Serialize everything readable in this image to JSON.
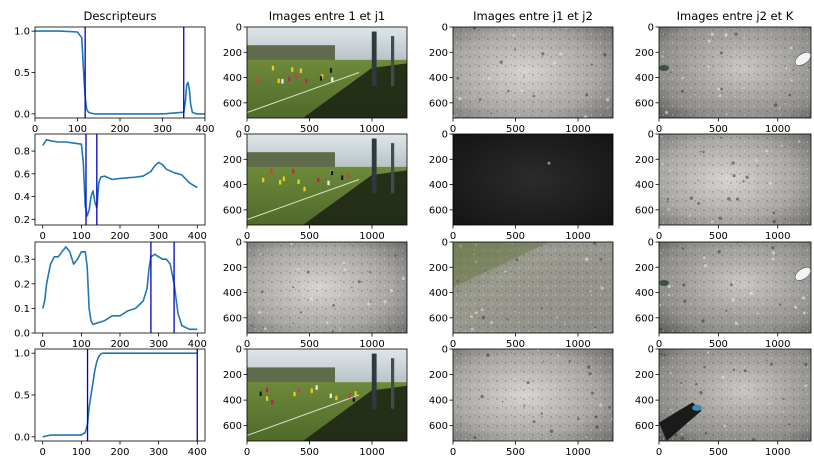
{
  "figure": {
    "columns": [
      {
        "title": "Descripteurs"
      },
      {
        "title": "Images entre 1 et j1"
      },
      {
        "title": "Images entre j1 et j2"
      },
      {
        "title": "Images entre j2 et K"
      }
    ]
  },
  "chart_data": [
    {
      "type": "line",
      "panel": "descriptor-row-1",
      "xlim": [
        0,
        400
      ],
      "ylim": [
        -0.05,
        1.05
      ],
      "xticks": [
        0,
        100,
        200,
        300,
        400
      ],
      "yticks": [
        0.0,
        0.5,
        1.0
      ],
      "ytick_labels": [
        "0.0",
        "0.5",
        "1.0"
      ],
      "vlines": [
        118,
        350
      ],
      "series": [
        {
          "color": "#1f77b4",
          "x": [
            0,
            60,
            100,
            110,
            114,
            118,
            122,
            126,
            130,
            140,
            200,
            300,
            350,
            354,
            357,
            360,
            363,
            366,
            370,
            380,
            400
          ],
          "y": [
            1.0,
            1.0,
            0.99,
            0.92,
            0.55,
            0.2,
            0.05,
            0.02,
            0.01,
            0.0,
            0.0,
            0.0,
            0.02,
            0.15,
            0.35,
            0.38,
            0.3,
            0.12,
            0.02,
            0.0,
            0.0
          ]
        }
      ]
    },
    {
      "type": "line",
      "panel": "descriptor-row-2",
      "xlim": [
        -20,
        420
      ],
      "ylim": [
        0.15,
        0.95
      ],
      "xticks": [
        0,
        100,
        200,
        300,
        400
      ],
      "yticks": [
        0.2,
        0.4,
        0.6,
        0.8
      ],
      "ytick_labels": [
        "0.2",
        "0.4",
        "0.6",
        "0.8"
      ],
      "vlines": [
        112,
        140
      ],
      "series": [
        {
          "color": "#1f77b4",
          "x": [
            0,
            10,
            20,
            40,
            60,
            80,
            100,
            105,
            110,
            115,
            120,
            125,
            130,
            135,
            140,
            145,
            150,
            160,
            180,
            200,
            240,
            260,
            280,
            290,
            300,
            310,
            320,
            340,
            360,
            380,
            400
          ],
          "y": [
            0.85,
            0.9,
            0.89,
            0.88,
            0.88,
            0.87,
            0.86,
            0.7,
            0.32,
            0.23,
            0.28,
            0.4,
            0.45,
            0.35,
            0.3,
            0.52,
            0.57,
            0.58,
            0.55,
            0.56,
            0.57,
            0.58,
            0.62,
            0.67,
            0.7,
            0.68,
            0.64,
            0.61,
            0.59,
            0.52,
            0.48
          ]
        }
      ]
    },
    {
      "type": "line",
      "panel": "descriptor-row-3",
      "xlim": [
        -20,
        420
      ],
      "ylim": [
        0.0,
        0.37
      ],
      "xticks": [
        0,
        100,
        200,
        300,
        400
      ],
      "yticks": [
        0.0,
        0.1,
        0.2,
        0.3
      ],
      "ytick_labels": [
        "0.0",
        "0.1",
        "0.2",
        "0.3"
      ],
      "vlines": [
        280,
        340
      ],
      "series": [
        {
          "color": "#1f77b4",
          "x": [
            0,
            5,
            10,
            20,
            30,
            40,
            50,
            60,
            70,
            80,
            90,
            100,
            110,
            115,
            120,
            125,
            130,
            140,
            160,
            180,
            200,
            220,
            240,
            260,
            270,
            275,
            280,
            290,
            300,
            310,
            320,
            330,
            340,
            350,
            360,
            380,
            400
          ],
          "y": [
            0.1,
            0.13,
            0.2,
            0.28,
            0.31,
            0.31,
            0.33,
            0.35,
            0.33,
            0.28,
            0.3,
            0.33,
            0.33,
            0.27,
            0.1,
            0.05,
            0.035,
            0.04,
            0.05,
            0.07,
            0.07,
            0.09,
            0.1,
            0.13,
            0.18,
            0.26,
            0.31,
            0.32,
            0.31,
            0.3,
            0.3,
            0.28,
            0.2,
            0.08,
            0.03,
            0.015,
            0.015
          ]
        }
      ]
    },
    {
      "type": "line",
      "panel": "descriptor-row-4",
      "xlim": [
        -20,
        420
      ],
      "ylim": [
        -0.05,
        1.05
      ],
      "xticks": [
        0,
        100,
        200,
        300,
        400
      ],
      "yticks": [
        0.0,
        0.5,
        1.0
      ],
      "ytick_labels": [
        "0.0",
        "0.5",
        "1.0"
      ],
      "vlines": [
        116,
        400
      ],
      "series": [
        {
          "color": "#1f77b4",
          "x": [
            0,
            20,
            60,
            100,
            110,
            116,
            120,
            125,
            130,
            135,
            140,
            145,
            150,
            155,
            160,
            170,
            200,
            300,
            400
          ],
          "y": [
            0.0,
            0.02,
            0.02,
            0.02,
            0.05,
            0.15,
            0.35,
            0.5,
            0.65,
            0.8,
            0.9,
            0.96,
            0.99,
            1.0,
            1.0,
            1.0,
            1.0,
            1.0,
            1.0
          ]
        }
      ]
    }
  ],
  "image_axes": {
    "xticks": [
      0,
      500,
      1000
    ],
    "xtick_labels": [
      "0",
      "500",
      "1000"
    ],
    "yticks": [
      0,
      200,
      400,
      600
    ],
    "ytick_labels": [
      "0",
      "200",
      "400",
      "600"
    ],
    "xlim": [
      0,
      1280
    ],
    "ylim": [
      0,
      720
    ]
  },
  "images": [
    [
      "football-field",
      "gravel-ground",
      "gravel-feet"
    ],
    [
      "football-field",
      "dark-ground",
      "gravel-ground"
    ],
    [
      "gravel-ground",
      "gravel-grass",
      "gravel-feet"
    ],
    [
      "football-field",
      "gravel-ground",
      "gravel-feet-legs"
    ]
  ],
  "colors": {
    "line": "#1f77b4",
    "vline": "#0000cc"
  }
}
